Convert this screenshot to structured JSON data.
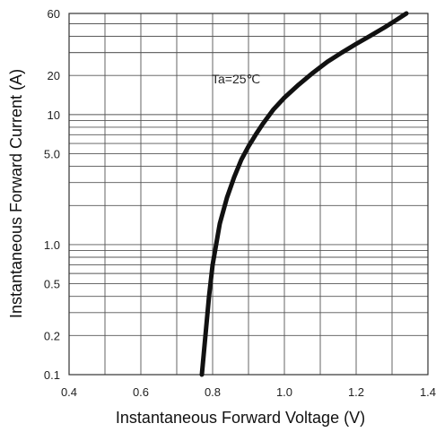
{
  "chart_data": {
    "type": "line",
    "xlabel": "Instantaneous Forward Voltage (V)",
    "ylabel": "Instantaneous Forward Current (A)",
    "x_range": [
      0.4,
      1.4
    ],
    "y_range": [
      0.1,
      60
    ],
    "y_scale": "log",
    "grid": true,
    "x_ticks": [
      "0.4",
      "0.6",
      "0.8",
      "1.0",
      "1.2",
      "1.4"
    ],
    "y_ticks": [
      {
        "value": 0.1,
        "label": "0.1"
      },
      {
        "value": 0.2,
        "label": "0.2"
      },
      {
        "value": 0.5,
        "label": "0.5"
      },
      {
        "value": 1.0,
        "label": "1.0"
      },
      {
        "value": 5.0,
        "label": "5.0"
      },
      {
        "value": 10,
        "label": "10"
      },
      {
        "value": 20,
        "label": "20"
      },
      {
        "value": 60,
        "label": "60"
      }
    ],
    "annotation": "Ta=25℃",
    "series": [
      {
        "x": [
          0.77,
          0.78,
          0.79,
          0.8,
          0.82,
          0.84,
          0.86,
          0.88,
          0.9,
          0.92,
          0.94,
          0.97,
          1.0,
          1.04,
          1.08,
          1.12,
          1.16,
          1.2,
          1.24,
          1.28,
          1.31,
          1.34
        ],
        "y": [
          0.1,
          0.2,
          0.4,
          0.7,
          1.45,
          2.3,
          3.3,
          4.5,
          5.7,
          7.0,
          8.5,
          11,
          13.5,
          17,
          21,
          25.5,
          30,
          35,
          40.5,
          47,
          53,
          60
        ],
        "color": "#111111"
      }
    ]
  }
}
